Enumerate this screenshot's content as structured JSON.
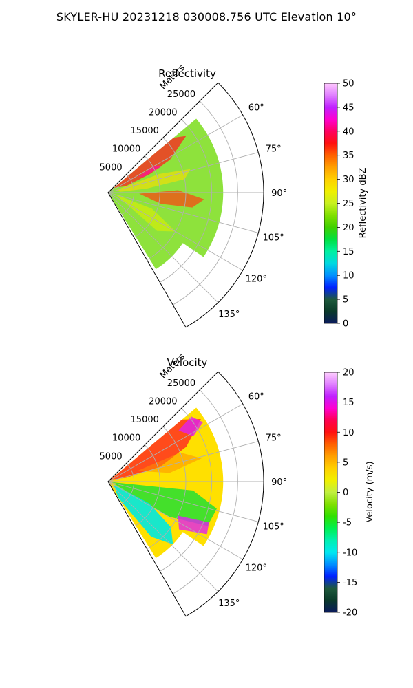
{
  "page_title": "SKYLER-HU  20231218  030008.756 UTC Elevation 10°",
  "chart_data": [
    {
      "type": "polar-sector",
      "title": "Reflectivity",
      "radial_label": "Meters",
      "r_ticks": [
        5000,
        10000,
        15000,
        20000,
        25000
      ],
      "r_tick_labels": [
        "5000",
        "10000",
        "15000",
        "20000",
        "25000"
      ],
      "r_max": 30000,
      "theta_range_deg": [
        45,
        150
      ],
      "theta_ticks": [
        60,
        75,
        90,
        105,
        120,
        135
      ],
      "theta_tick_labels": [
        "60°",
        "75°",
        "90°",
        "105°",
        "120°",
        "135°"
      ],
      "grid": true,
      "colorbar": {
        "label": "Reflectivity dBZ",
        "min": 0,
        "max": 50,
        "ticks": [
          0,
          5,
          10,
          15,
          20,
          25,
          30,
          35,
          40,
          45,
          50
        ],
        "tick_labels": [
          "0",
          "5",
          "10",
          "15",
          "20",
          "25",
          "30",
          "35",
          "40",
          "45",
          "50"
        ],
        "colormap": "pyart_HomeyerRainbow"
      }
    },
    {
      "type": "polar-sector",
      "title": "Velocity",
      "radial_label": "Meters",
      "r_ticks": [
        5000,
        10000,
        15000,
        20000,
        25000
      ],
      "r_tick_labels": [
        "5000",
        "10000",
        "15000",
        "20000",
        "25000"
      ],
      "r_max": 30000,
      "theta_range_deg": [
        45,
        150
      ],
      "theta_ticks": [
        60,
        75,
        90,
        105,
        120,
        135
      ],
      "theta_tick_labels": [
        "60°",
        "75°",
        "90°",
        "105°",
        "120°",
        "135°"
      ],
      "grid": true,
      "colorbar": {
        "label": "Velocity (m/s)",
        "min": -20,
        "max": 20,
        "ticks": [
          -20,
          -15,
          -10,
          -5,
          0,
          5,
          10,
          15,
          20
        ],
        "tick_labels": [
          "-20",
          "-15",
          "-10",
          "-5",
          "0",
          "5",
          "10",
          "15",
          "20"
        ],
        "colormap": "pyart_BuDRd18"
      }
    }
  ],
  "colors": {
    "refl_stops": [
      "#0a1a5c",
      "#0a3a2a",
      "#1e5a3c",
      "#0020ff",
      "#0090ff",
      "#00d8e0",
      "#00f0a0",
      "#00e040",
      "#40d000",
      "#80e000",
      "#c8f020",
      "#f0f000",
      "#ffd000",
      "#ffa000",
      "#ff6000",
      "#ff1010",
      "#ff0060",
      "#ff00d0",
      "#c020ff",
      "#e080ff",
      "#ffc8ff"
    ],
    "vel_stops": [
      "#0a1a5c",
      "#0a3a2a",
      "#1e5a3c",
      "#0020ff",
      "#0090ff",
      "#00e8f0",
      "#00f0b0",
      "#00f050",
      "#30e000",
      "#80e000",
      "#c0f040",
      "#f0f000",
      "#ffd000",
      "#ffa000",
      "#ff6000",
      "#ff1010",
      "#ff0050",
      "#ff00d0",
      "#c020ff",
      "#e080ff",
      "#ffd0ff"
    ]
  }
}
